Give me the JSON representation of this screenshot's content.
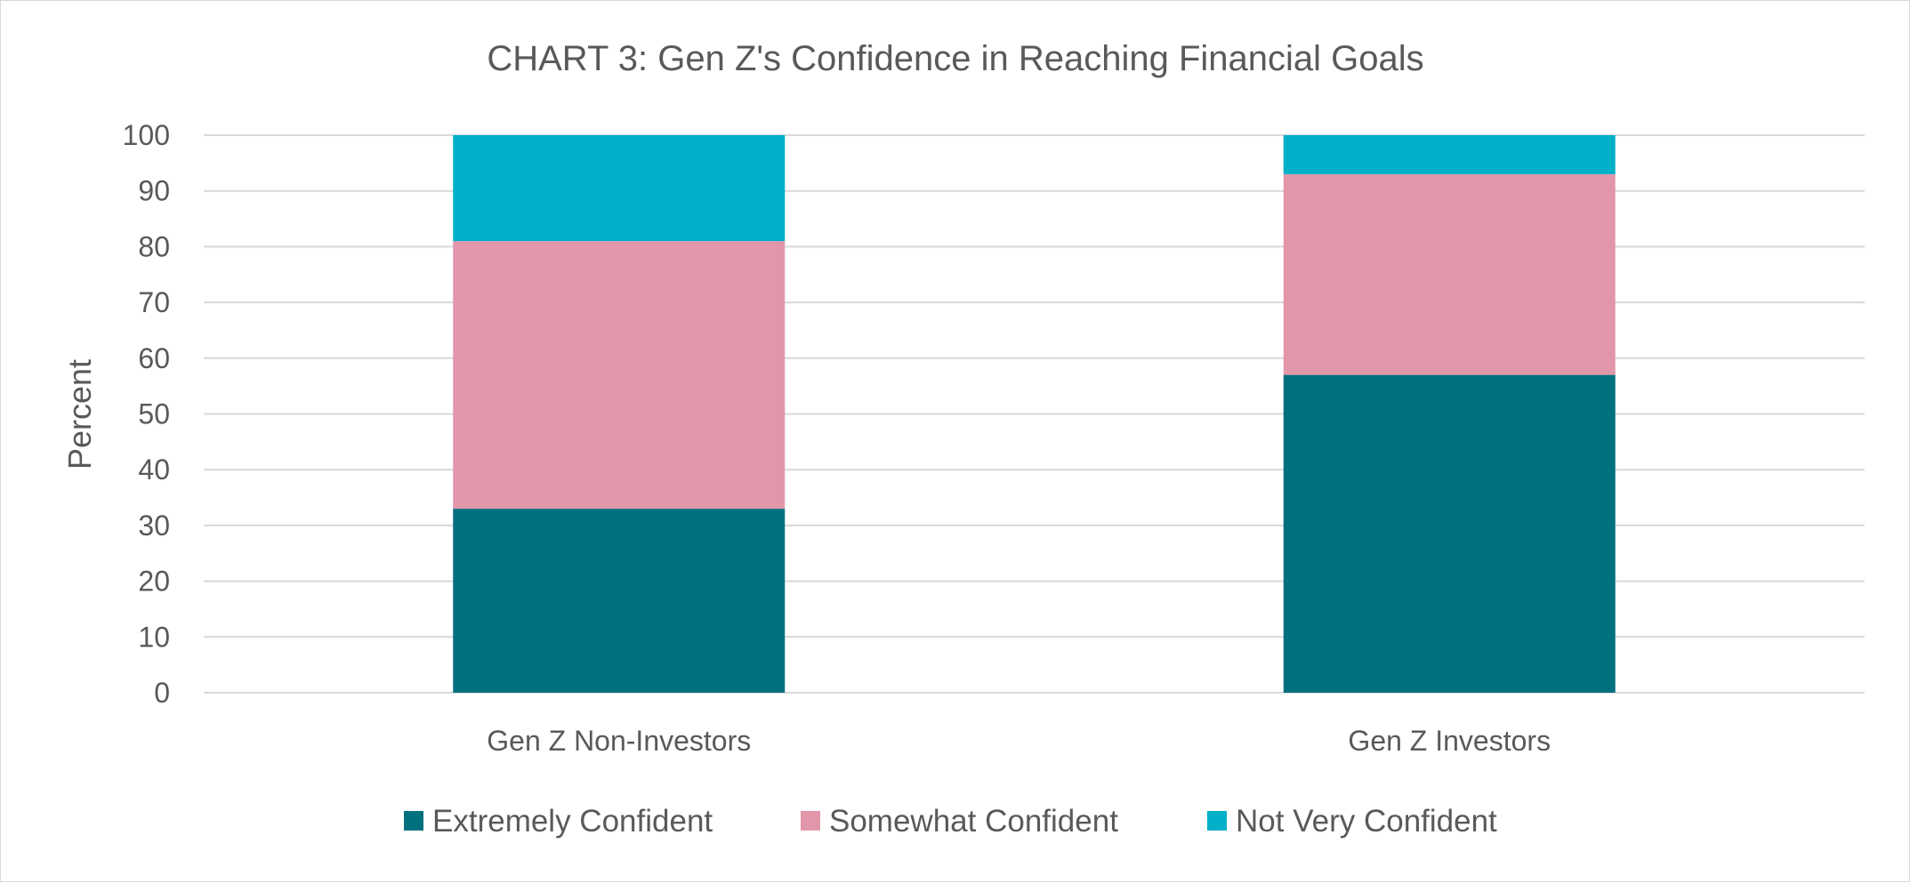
{
  "chart_data": {
    "type": "bar",
    "stacked": true,
    "title": "CHART 3: Gen Z's Confidence in Reaching Financial Goals",
    "xlabel": "",
    "ylabel": "Percent",
    "ylim": [
      0,
      100
    ],
    "yticks": [
      0,
      10,
      20,
      30,
      40,
      50,
      60,
      70,
      80,
      90,
      100
    ],
    "grid": true,
    "legend_position": "bottom",
    "categories": [
      "Gen Z Non-Investors",
      "Gen Z Investors"
    ],
    "series": [
      {
        "name": "Extremely Confident",
        "values": [
          33,
          57
        ],
        "color": "#00707f"
      },
      {
        "name": "Somewhat Confident",
        "values": [
          48,
          36
        ],
        "color": "#e196aa"
      },
      {
        "name": "Not Very Confident",
        "values": [
          19,
          7
        ],
        "color": "#00afc8"
      }
    ]
  }
}
